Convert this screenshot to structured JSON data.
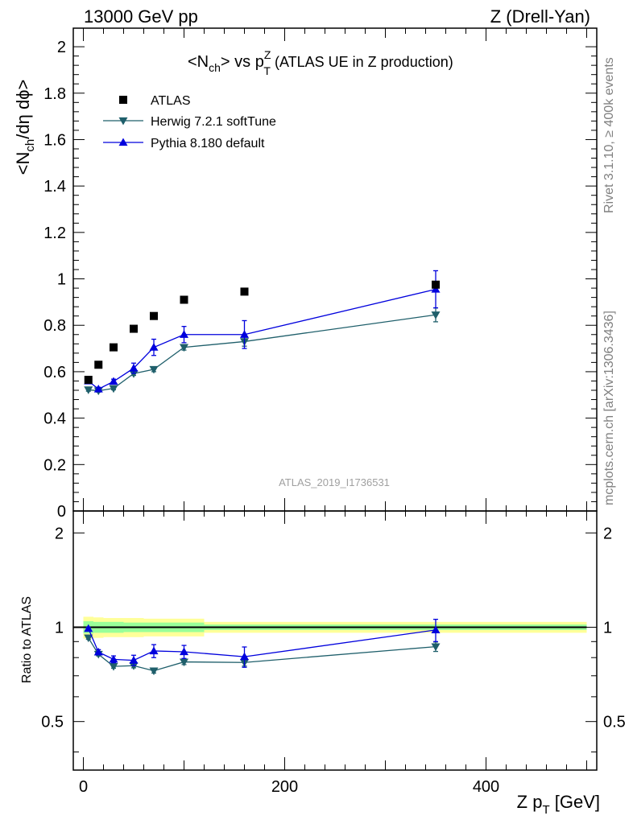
{
  "header": {
    "left": "13000 GeV pp",
    "right": "Z (Drell-Yan)"
  },
  "side_labels": {
    "rivet": "Rivet 3.1.10, ≥ 400k events",
    "mcplots": "mcplots.cern.ch [arXiv:1306.3436]"
  },
  "analysis_id": "ATLAS_2019_I1736531",
  "chart_data": [
    {
      "type": "scatter",
      "title_parts": {
        "main": "<N",
        "sub1": "ch",
        "mid": "> vs p",
        "sup": "Z",
        "sub2": "T",
        "tail": " (ATLAS UE in Z production)"
      },
      "ylabel_parts": {
        "a": "<N",
        "sub": "ch",
        "b": "/dη dϕ>"
      },
      "xlim": [
        -10,
        510
      ],
      "ylim": [
        0,
        2.08
      ],
      "yticks": [
        0,
        0.2,
        0.4,
        0.6,
        0.8,
        1,
        1.2,
        1.4,
        1.6,
        1.8,
        2
      ],
      "ytick_labels": [
        "0",
        "0.2",
        "0.4",
        "0.6",
        "0.8",
        "1",
        "1.2",
        "1.4",
        "1.6",
        "1.8",
        "2"
      ],
      "legend_position": "top-left",
      "series": [
        {
          "name": "ATLAS",
          "marker": "square",
          "color": "#000000",
          "x": [
            5,
            15,
            30,
            50,
            70,
            100,
            160,
            350
          ],
          "y": [
            0.565,
            0.63,
            0.705,
            0.785,
            0.84,
            0.91,
            0.945,
            0.975
          ]
        },
        {
          "name": "Herwig 7.2.1 softTune",
          "marker": "triangle-down",
          "color": "#1f5f6b",
          "x": [
            5,
            15,
            30,
            50,
            70,
            100,
            160,
            350
          ],
          "y": [
            0.522,
            0.518,
            0.528,
            0.592,
            0.61,
            0.705,
            0.73,
            0.845
          ],
          "err": [
            0.006,
            0.006,
            0.006,
            0.008,
            0.01,
            0.012,
            0.02,
            0.03
          ]
        },
        {
          "name": "Pythia 8.180 default",
          "marker": "triangle-up",
          "color": "#0000dd",
          "x": [
            5,
            15,
            30,
            50,
            70,
            100,
            160,
            350
          ],
          "y": [
            0.56,
            0.525,
            0.558,
            0.615,
            0.705,
            0.76,
            0.76,
            0.955
          ],
          "err": [
            0.006,
            0.008,
            0.01,
            0.022,
            0.035,
            0.035,
            0.06,
            0.08
          ]
        }
      ]
    },
    {
      "type": "scatter",
      "ylabel": "Ratio to ATLAS",
      "xlabel_parts": {
        "a": "Z p",
        "sub": "T",
        "b": " [GeV]"
      },
      "xlim": [
        -10,
        510
      ],
      "ylim": [
        0.35,
        2.35
      ],
      "xticks": [
        0,
        200,
        400
      ],
      "xtick_labels": [
        "0",
        "200",
        "400"
      ],
      "yticks": [
        0.5,
        1,
        2
      ],
      "ytick_labels": [
        "0.5",
        "1",
        "2"
      ],
      "reference_line": 1,
      "band_edges": [
        0,
        10,
        20,
        40,
        60,
        80,
        120,
        200,
        500
      ],
      "band_outer": [
        0.08,
        0.075,
        0.07,
        0.07,
        0.065,
        0.065,
        0.04,
        0.04
      ],
      "band_inner": [
        0.045,
        0.04,
        0.04,
        0.035,
        0.035,
        0.035,
        0.02,
        0.02
      ],
      "band_colors": {
        "outer": "#ffff99",
        "inner": "#99ff99"
      },
      "series": [
        {
          "name": "Herwig 7.2.1 softTune",
          "marker": "triangle-down",
          "color": "#1f5f6b",
          "x": [
            5,
            15,
            30,
            50,
            70,
            100,
            160,
            350
          ],
          "y": [
            0.925,
            0.82,
            0.75,
            0.754,
            0.726,
            0.775,
            0.772,
            0.867
          ],
          "err": [
            0.01,
            0.01,
            0.01,
            0.012,
            0.012,
            0.015,
            0.02,
            0.03
          ]
        },
        {
          "name": "Pythia 8.180 default",
          "marker": "triangle-up",
          "color": "#0000dd",
          "x": [
            5,
            15,
            30,
            50,
            70,
            100,
            160,
            350
          ],
          "y": [
            0.99,
            0.833,
            0.79,
            0.784,
            0.84,
            0.835,
            0.805,
            0.98
          ],
          "err": [
            0.01,
            0.015,
            0.02,
            0.03,
            0.04,
            0.04,
            0.06,
            0.08
          ]
        }
      ]
    }
  ]
}
